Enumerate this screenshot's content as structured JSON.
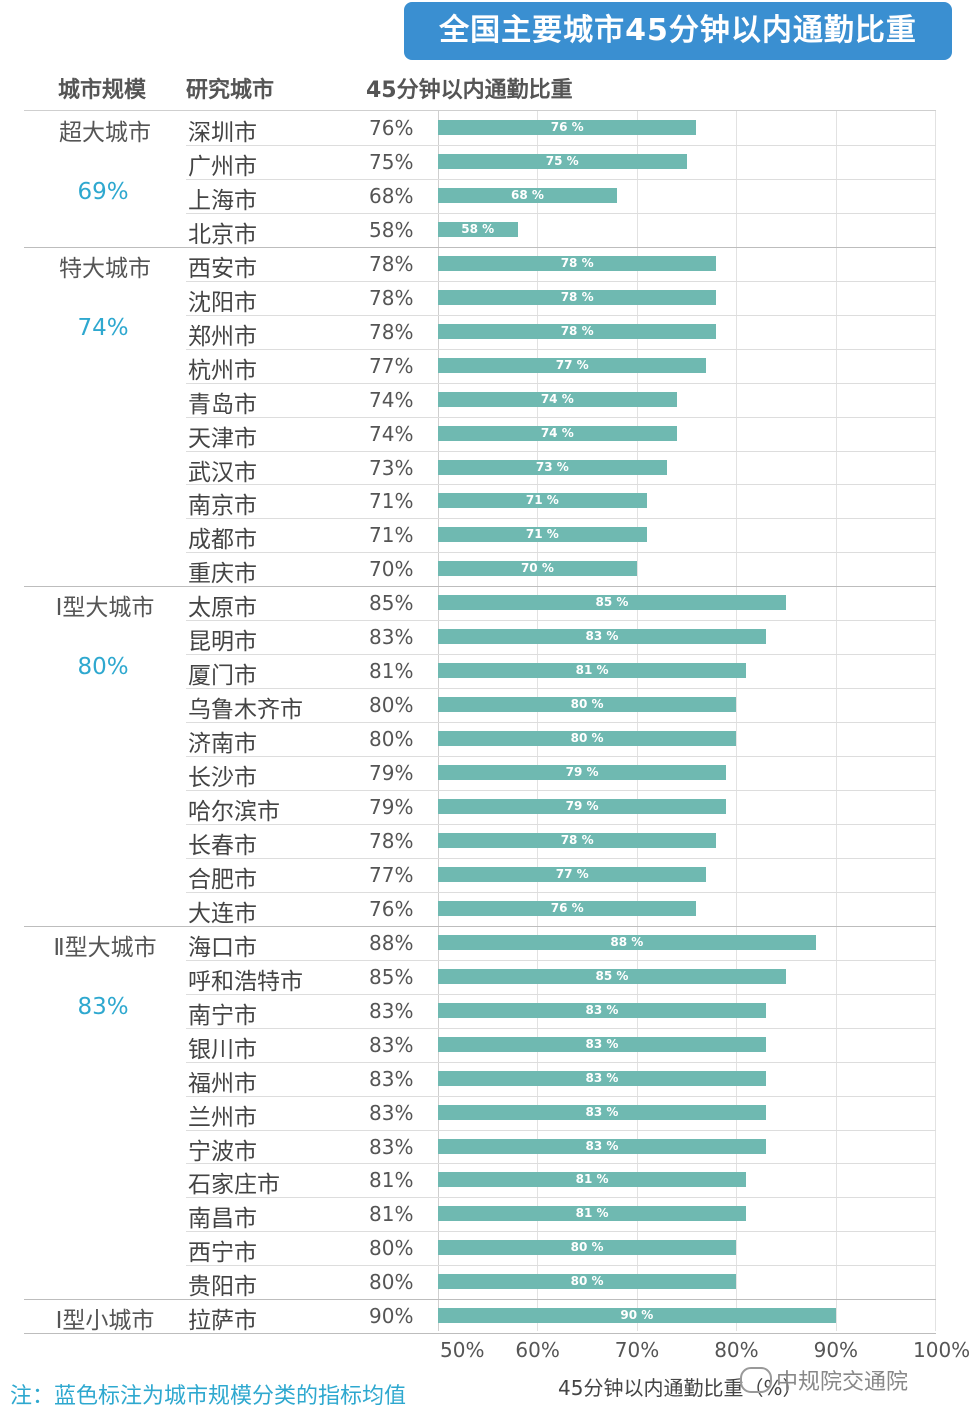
{
  "title": "全国主要城市45分钟以内通勤比重",
  "headers": {
    "category": "城市规模",
    "city": "研究城市",
    "share": "45分钟以内通勤比重"
  },
  "groups": [
    {
      "name": "超大城市",
      "average": "69%"
    },
    {
      "name": "特大城市",
      "average": "74%"
    },
    {
      "name": "Ⅰ型大城市",
      "average": "80%"
    },
    {
      "name": "Ⅱ型大城市",
      "average": "83%"
    },
    {
      "name": "Ⅰ型小城市",
      "average": ""
    }
  ],
  "chart_data": {
    "type": "bar",
    "orientation": "horizontal",
    "categories": [
      "深圳市",
      "广州市",
      "上海市",
      "北京市",
      "西安市",
      "沈阳市",
      "郑州市",
      "杭州市",
      "青岛市",
      "天津市",
      "武汉市",
      "南京市",
      "成都市",
      "重庆市",
      "太原市",
      "昆明市",
      "厦门市",
      "乌鲁木齐市",
      "济南市",
      "长沙市",
      "哈尔滨市",
      "长春市",
      "合肥市",
      "大连市",
      "海口市",
      "呼和浩特市",
      "南宁市",
      "银川市",
      "福州市",
      "兰州市",
      "宁波市",
      "石家庄市",
      "南昌市",
      "西宁市",
      "贵阳市",
      "拉萨市"
    ],
    "group_index": [
      0,
      0,
      0,
      0,
      1,
      1,
      1,
      1,
      1,
      1,
      1,
      1,
      1,
      1,
      2,
      2,
      2,
      2,
      2,
      2,
      2,
      2,
      2,
      2,
      3,
      3,
      3,
      3,
      3,
      3,
      3,
      3,
      3,
      3,
      3,
      4
    ],
    "series": [
      {
        "values": [
          76,
          75,
          68,
          58,
          78,
          78,
          78,
          77,
          74,
          74,
          73,
          71,
          71,
          70,
          85,
          83,
          81,
          80,
          80,
          79,
          79,
          78,
          77,
          76,
          88,
          85,
          83,
          83,
          83,
          83,
          83,
          81,
          81,
          80,
          80,
          90
        ],
        "text_values": [
          "76%",
          "75%",
          "68%",
          "58%",
          "78%",
          "78%",
          "78%",
          "77%",
          "74%",
          "74%",
          "73%",
          "71%",
          "71%",
          "70%",
          "85%",
          "83%",
          "81%",
          "80%",
          "80%",
          "79%",
          "79%",
          "78%",
          "77%",
          "76%",
          "88%",
          "85%",
          "83%",
          "83%",
          "83%",
          "83%",
          "83%",
          "81%",
          "81%",
          "80%",
          "80%",
          "90%"
        ],
        "bar_labels": [
          "76 %",
          "75 %",
          "68 %",
          "58 %",
          "78 %",
          "78 %",
          "78 %",
          "77 %",
          "74 %",
          "74 %",
          "73 %",
          "71 %",
          "71 %",
          "70 %",
          "85 %",
          "83 %",
          "81 %",
          "80 %",
          "80 %",
          "79 %",
          "79 %",
          "78 %",
          "77 %",
          "76 %",
          "88 %",
          "85 %",
          "83 %",
          "83 %",
          "83 %",
          "83 %",
          "83 %",
          "81 %",
          "81 %",
          "80 %",
          "80 %",
          "90 %"
        ]
      }
    ],
    "xlim": [
      50,
      100
    ],
    "xticks": [
      "50%",
      "60%",
      "70%",
      "80%",
      "90%",
      "100%"
    ],
    "xlabel": "45分钟以内通勤比重（%）",
    "bar_color": "#6fb9b1",
    "grid": true
  },
  "note": "注：蓝色标注为城市规模分类的指标均值",
  "watermark": "中规院交通院",
  "colors": {
    "title_bg": "#3a8fd1",
    "average_text": "#2ea8cf",
    "note_text": "#2ea8cf"
  }
}
